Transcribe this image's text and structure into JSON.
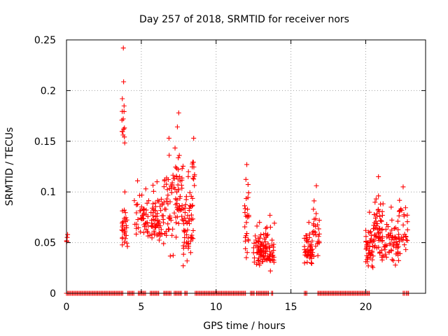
{
  "chart_data": {
    "type": "scatter",
    "title": "Day 257 of 2018, SRMTID for receiver nors",
    "xlabel": "GPS time / hours",
    "ylabel": "SRMTID / TECUs",
    "xlim": [
      0,
      24
    ],
    "ylim": [
      0,
      0.25
    ],
    "xticks": [
      0,
      5,
      10,
      15,
      20
    ],
    "xtick_labels": [
      "0",
      "5",
      "10",
      "15",
      "20"
    ],
    "yticks": [
      0,
      0.05,
      0.1,
      0.15,
      0.2,
      0.25
    ],
    "ytick_labels": [
      "0",
      "0.05",
      "0.1",
      "0.15",
      "0.2",
      "0.25"
    ],
    "grid": true,
    "marker": "+",
    "series_color": "#ff0000",
    "clusters": [
      {
        "x_min": 0.0,
        "x_max": 0.15,
        "y_min": 0.049,
        "y_max": 0.058,
        "n": 3
      },
      {
        "x_min": 3.7,
        "x_max": 4.1,
        "y_min": 0.04,
        "y_max": 0.1,
        "n": 28
      },
      {
        "x_min": 3.7,
        "x_max": 3.9,
        "y_min": 0.12,
        "y_max": 0.242,
        "n": 14
      },
      {
        "x_min": 4.5,
        "x_max": 5.0,
        "y_min": 0.05,
        "y_max": 0.111,
        "n": 16
      },
      {
        "x_min": 5.0,
        "x_max": 5.6,
        "y_min": 0.05,
        "y_max": 0.103,
        "n": 30
      },
      {
        "x_min": 5.6,
        "x_max": 6.5,
        "y_min": 0.045,
        "y_max": 0.11,
        "n": 60
      },
      {
        "x_min": 6.5,
        "x_max": 7.2,
        "y_min": 0.033,
        "y_max": 0.153,
        "n": 40
      },
      {
        "x_min": 7.2,
        "x_max": 7.8,
        "y_min": 0.04,
        "y_max": 0.178,
        "n": 50
      },
      {
        "x_min": 7.8,
        "x_max": 8.5,
        "y_min": 0.025,
        "y_max": 0.12,
        "n": 55
      },
      {
        "x_min": 8.4,
        "x_max": 8.6,
        "y_min": 0.1,
        "y_max": 0.153,
        "n": 10
      },
      {
        "x_min": 11.9,
        "x_max": 12.2,
        "y_min": 0.03,
        "y_max": 0.127,
        "n": 25
      },
      {
        "x_min": 12.5,
        "x_max": 13.3,
        "y_min": 0.025,
        "y_max": 0.07,
        "n": 60
      },
      {
        "x_min": 13.3,
        "x_max": 13.9,
        "y_min": 0.02,
        "y_max": 0.077,
        "n": 45
      },
      {
        "x_min": 15.9,
        "x_max": 16.5,
        "y_min": 0.022,
        "y_max": 0.07,
        "n": 45
      },
      {
        "x_min": 16.5,
        "x_max": 16.9,
        "y_min": 0.03,
        "y_max": 0.106,
        "n": 25
      },
      {
        "x_min": 20.0,
        "x_max": 20.5,
        "y_min": 0.02,
        "y_max": 0.08,
        "n": 40
      },
      {
        "x_min": 20.5,
        "x_max": 21.2,
        "y_min": 0.025,
        "y_max": 0.115,
        "n": 60
      },
      {
        "x_min": 21.2,
        "x_max": 22.2,
        "y_min": 0.025,
        "y_max": 0.085,
        "n": 55
      },
      {
        "x_min": 22.2,
        "x_max": 22.8,
        "y_min": 0.03,
        "y_max": 0.105,
        "n": 30
      }
    ],
    "zero_ranges": [
      [
        0.0,
        3.8
      ],
      [
        4.1,
        4.5
      ],
      [
        4.8,
        5.3
      ],
      [
        5.6,
        6.2
      ],
      [
        6.5,
        7.0
      ],
      [
        7.2,
        7.7
      ],
      [
        7.9,
        8.1
      ],
      [
        8.6,
        12.0
      ],
      [
        12.3,
        12.6
      ],
      [
        12.7,
        13.5
      ],
      [
        13.7,
        13.8
      ],
      [
        15.9,
        16.1
      ],
      [
        16.8,
        20.3
      ],
      [
        22.5,
        22.6
      ],
      [
        22.7,
        22.9
      ]
    ]
  }
}
